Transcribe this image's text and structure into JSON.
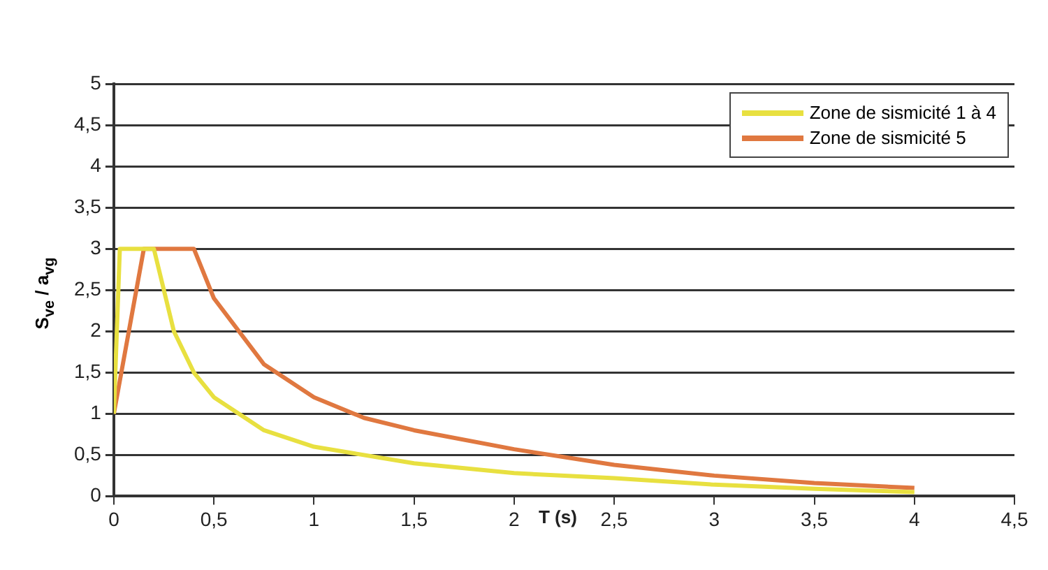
{
  "chart_data": {
    "type": "line",
    "xlabel": "T (s)",
    "ylabel": "S$_{ve}$ / a$_{vg}$",
    "xlim": [
      0,
      4.5
    ],
    "xticks": [
      0,
      {
        "value": 0.5,
        "label": "0,5"
      },
      1,
      {
        "value": 1.5,
        "label": "1,5"
      },
      2,
      {
        "value": 2.5,
        "label": "2,5"
      },
      3,
      {
        "value": 3.5,
        "label": "3,5"
      },
      4,
      {
        "value": 4.5,
        "label": "4,5"
      }
    ],
    "ylim": [
      0,
      5
    ],
    "yticks": [
      0,
      {
        "value": 0.5,
        "label": "0,5"
      },
      1,
      {
        "value": 1.5,
        "label": "1,5"
      },
      2,
      {
        "value": 2.5,
        "label": "2,5"
      },
      3,
      {
        "value": 3.5,
        "label": "3,5"
      },
      4,
      {
        "value": 4.5,
        "label": "4,5"
      },
      5
    ],
    "grid": "y",
    "legend": "top right",
    "marker": "none",
    "line_style": "solid",
    "series": [
      {
        "name": "Zone de sismicité 1 à 4",
        "color": "#e8e040",
        "x": [
          0,
          0.03,
          0.2,
          0.3,
          0.4,
          0.5,
          0.75,
          1,
          1.5,
          2,
          2.5,
          3,
          3.5,
          4
        ],
        "values": [
          1,
          3,
          3,
          2,
          1.5,
          1.2,
          0.8,
          0.6,
          0.4,
          0.28,
          0.22,
          0.14,
          0.09,
          0.05
        ]
      },
      {
        "name": "Zone de sismicité 5",
        "color": "#e07840",
        "x": [
          0,
          0.15,
          0.4,
          0.5,
          0.75,
          1,
          1.25,
          1.5,
          2,
          2.5,
          3,
          3.5,
          4
        ],
        "values": [
          1,
          3,
          3,
          2.4,
          1.6,
          1.2,
          0.95,
          0.8,
          0.57,
          0.38,
          0.25,
          0.16,
          0.1
        ]
      }
    ]
  }
}
